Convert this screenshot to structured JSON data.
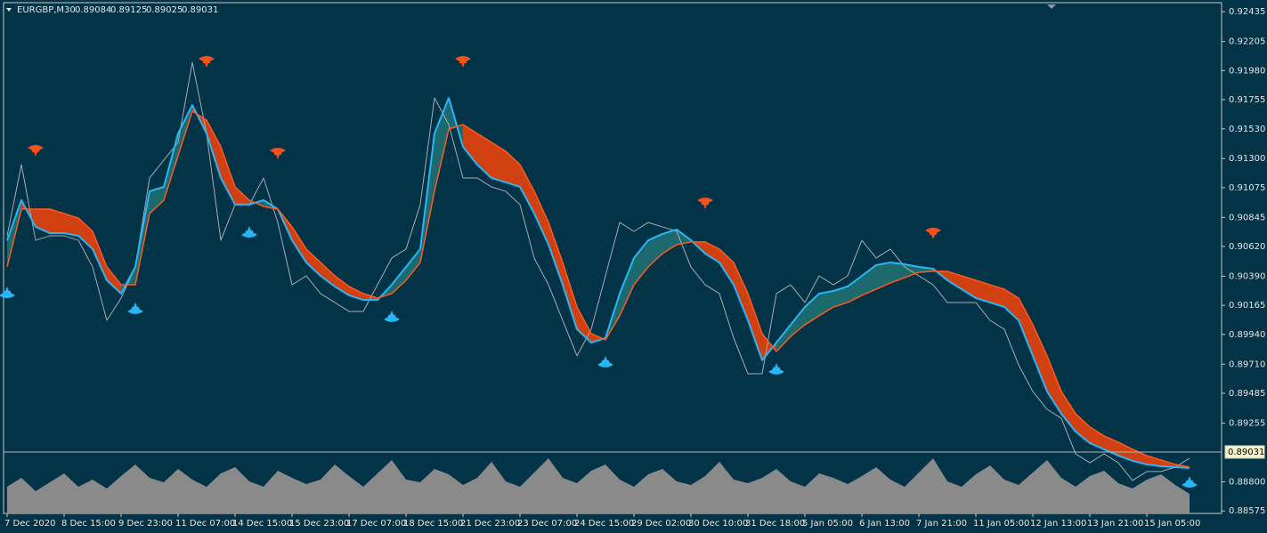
{
  "chart_data": {
    "type": "price",
    "title": "EURGBP,M30",
    "ohlc": [
      0.89084,
      0.89125,
      0.89025,
      0.89031
    ],
    "last_price": 0.89031,
    "ylim": [
      0.88556,
      0.92526
    ],
    "yticks": [
      0.92435,
      0.92205,
      {
        "value": 0.9198,
        "label": "0.91980"
      },
      0.91755,
      {
        "value": 0.9153,
        "label": "0.91530"
      },
      {
        "value": 0.913,
        "label": "0.91300"
      },
      0.91075,
      0.90845,
      {
        "value": 0.9062,
        "label": "0.90620"
      },
      {
        "value": 0.9039,
        "label": "0.90390"
      },
      0.90165,
      {
        "value": 0.8994,
        "label": "0.89940"
      },
      {
        "value": 0.8971,
        "label": "0.89710"
      },
      0.89485,
      0.89255,
      {
        "value": 0.888,
        "label": "0.88800"
      },
      0.88575
    ],
    "categories": [
      "7 Dec 2020",
      null,
      null,
      null,
      "8 Dec 15:00",
      null,
      null,
      null,
      "9 Dec 23:00",
      null,
      null,
      null,
      "11 Dec 07:00",
      null,
      null,
      null,
      "14 Dec 15:00",
      null,
      null,
      null,
      "15 Dec 23:00",
      null,
      null,
      null,
      "17 Dec 07:00",
      null,
      null,
      null,
      "18 Dec 15:00",
      null,
      null,
      null,
      "21 Dec 23:00",
      null,
      null,
      null,
      "23 Dec 07:00",
      null,
      null,
      null,
      "24 Dec 15:00",
      null,
      null,
      null,
      "29 Dec 02:00",
      null,
      null,
      null,
      "30 Dec 10:00",
      null,
      null,
      null,
      "31 Dec 18:00",
      null,
      null,
      null,
      "5 Jan 05:00",
      null,
      null,
      null,
      "6 Jan 13:00",
      null,
      null,
      null,
      "7 Jan 21:00",
      null,
      null,
      null,
      "11 Jan 05:00",
      null,
      null,
      null,
      "12 Jan 13:00",
      null,
      null,
      null,
      "13 Jan 21:00",
      null,
      null,
      null,
      "15 Jan 05:00",
      null,
      null,
      null
    ],
    "series": [
      {
        "color": "#a7adb3",
        "values": [
          0.90703,
          0.91253,
          0.90668,
          0.90703,
          0.90703,
          0.90668,
          0.90462,
          0.90049,
          0.90221,
          0.90462,
          0.9115,
          0.91288,
          0.91425,
          0.92044,
          0.91494,
          0.90668,
          0.90944,
          0.90944,
          0.9115,
          0.90806,
          0.90324,
          0.90393,
          0.90256,
          0.90187,
          0.90118,
          0.90118,
          0.90324,
          0.90531,
          0.906,
          0.90944,
          0.91769,
          0.91563,
          0.9115,
          0.9115,
          0.91081,
          0.91047,
          0.90944,
          0.90531,
          0.90324,
          0.90049,
          0.89774,
          0.8998,
          0.90393,
          0.90806,
          0.90737,
          0.90806,
          0.90772,
          0.90737,
          0.90462,
          0.90324,
          0.90256,
          0.89912,
          0.89636,
          0.89636,
          0.90256,
          0.90324,
          0.90187,
          0.90393,
          0.90324,
          0.90393,
          0.90668,
          0.90531,
          0.906,
          0.90462,
          0.90393,
          0.90324,
          0.90187,
          0.90187,
          0.90187,
          0.90049,
          0.8998,
          0.89705,
          0.89499,
          0.89361,
          0.89292,
          0.89017,
          0.88948,
          0.89017,
          0.88948,
          0.88811,
          0.8888,
          0.8888,
          0.88914,
          0.88983
        ]
      },
      {
        "color": "#29b6f6",
        "values": [
          0.90668,
          0.90978,
          0.90772,
          0.90723,
          0.90723,
          0.90703,
          0.906,
          0.90359,
          0.90256,
          0.90462,
          0.91047,
          0.91081,
          0.91494,
          0.91714,
          0.91494,
          0.9115,
          0.90944,
          0.90944,
          0.90978,
          0.90909,
          0.90668,
          0.90496,
          0.90393,
          0.90311,
          0.90242,
          0.90207,
          0.90207,
          0.90324,
          0.90462,
          0.906,
          0.91494,
          0.91769,
          0.91391,
          0.91253,
          0.9115,
          0.91116,
          0.91081,
          0.90875,
          0.90634,
          0.90324,
          0.8998,
          0.89877,
          0.89912,
          0.90256,
          0.90531,
          0.90668,
          0.90717,
          0.90751,
          0.90668,
          0.90565,
          0.90496,
          0.90324,
          0.90049,
          0.8974,
          0.89877,
          0.90015,
          0.90152,
          0.90256,
          0.90276,
          0.90311,
          0.90393,
          0.90476,
          0.90496,
          0.90483,
          0.90462,
          0.90448,
          0.90359,
          0.9029,
          0.90221,
          0.90187,
          0.90152,
          0.90049,
          0.89774,
          0.89499,
          0.89327,
          0.89189,
          0.891,
          0.89052,
          0.89003,
          0.88962,
          0.88935,
          0.88921,
          0.88914,
          0.88907
        ]
      },
      {
        "color": "#ff5a1f",
        "values": [
          0.90462,
          0.90909,
          0.90909,
          0.90909,
          0.90875,
          0.9084,
          0.90737,
          0.90462,
          0.90324,
          0.90324,
          0.90875,
          0.90978,
          0.91322,
          0.91666,
          0.91597,
          0.91391,
          0.91081,
          0.90978,
          0.9093,
          0.90909,
          0.90772,
          0.906,
          0.90496,
          0.90393,
          0.90311,
          0.90256,
          0.90221,
          0.90256,
          0.90359,
          0.90496,
          0.91047,
          0.91528,
          0.91563,
          0.91494,
          0.91425,
          0.91356,
          0.91253,
          0.91047,
          0.90806,
          0.90496,
          0.90152,
          0.89946,
          0.89898,
          0.90084,
          0.90324,
          0.90462,
          0.90565,
          0.90634,
          0.90655,
          0.90655,
          0.906,
          0.90496,
          0.90256,
          0.89946,
          0.89808,
          0.89925,
          0.90015,
          0.90084,
          0.90152,
          0.90187,
          0.90242,
          0.9029,
          0.90338,
          0.90379,
          0.90421,
          0.90428,
          0.90428,
          0.90393,
          0.90359,
          0.90324,
          0.9029,
          0.90221,
          0.90015,
          0.89774,
          0.89499,
          0.89327,
          0.89224,
          0.89155,
          0.89107,
          0.89052,
          0.89003,
          0.88969,
          0.88935,
          0.88914
        ]
      }
    ],
    "fill_up_color": "#1f6f72",
    "fill_down_color": "#e8410a",
    "sell_signals": {
      "color": "#f4511e",
      "values": [
        null,
        null,
        0.91356,
        null,
        null,
        null,
        null,
        null,
        null,
        null,
        null,
        null,
        null,
        null,
        0.92044,
        null,
        null,
        null,
        null,
        0.91336,
        null,
        null,
        null,
        null,
        null,
        null,
        null,
        null,
        null,
        null,
        null,
        null,
        0.92044,
        null,
        null,
        null,
        null,
        null,
        null,
        null,
        null,
        null,
        null,
        null,
        null,
        null,
        null,
        null,
        null,
        0.9095,
        null,
        null,
        null,
        null,
        null,
        null,
        null,
        null,
        null,
        null,
        null,
        null,
        null,
        null,
        null,
        0.90717,
        null,
        null,
        null,
        null,
        null,
        null,
        null,
        null,
        null,
        null,
        null,
        null,
        null,
        null,
        null,
        null,
        null,
        null
      ]
    },
    "buy_signals": {
      "color": "#29b6f6",
      "values": [
        0.90269,
        null,
        null,
        null,
        null,
        null,
        null,
        null,
        null,
        0.90146,
        null,
        null,
        null,
        null,
        null,
        null,
        null,
        0.90737,
        null,
        null,
        null,
        null,
        null,
        null,
        null,
        null,
        null,
        0.90084,
        null,
        null,
        null,
        null,
        null,
        null,
        null,
        null,
        null,
        null,
        null,
        null,
        null,
        null,
        0.89733,
        null,
        null,
        null,
        null,
        null,
        null,
        null,
        null,
        null,
        null,
        null,
        0.89678,
        null,
        null,
        null,
        null,
        null,
        null,
        null,
        null,
        null,
        null,
        null,
        null,
        null,
        null,
        null,
        null,
        null,
        null,
        null,
        null,
        null,
        null,
        null,
        null,
        null,
        null,
        null,
        null,
        0.88804
      ]
    },
    "volume": {
      "color": "#8a8a8a",
      "ylim": [
        0,
        70
      ],
      "values": [
        30,
        40,
        25,
        35,
        45,
        30,
        38,
        28,
        42,
        55,
        40,
        35,
        50,
        38,
        30,
        45,
        52,
        36,
        30,
        48,
        40,
        33,
        38,
        55,
        42,
        30,
        45,
        60,
        38,
        35,
        50,
        44,
        32,
        40,
        58,
        36,
        30,
        46,
        62,
        40,
        34,
        48,
        55,
        38,
        30,
        44,
        50,
        36,
        32,
        42,
        58,
        38,
        34,
        40,
        50,
        36,
        30,
        45,
        40,
        33,
        42,
        52,
        38,
        30,
        46,
        62,
        36,
        30,
        44,
        54,
        38,
        32,
        46,
        60,
        40,
        30,
        42,
        48,
        34,
        28,
        38,
        44,
        32,
        22
      ]
    }
  }
}
